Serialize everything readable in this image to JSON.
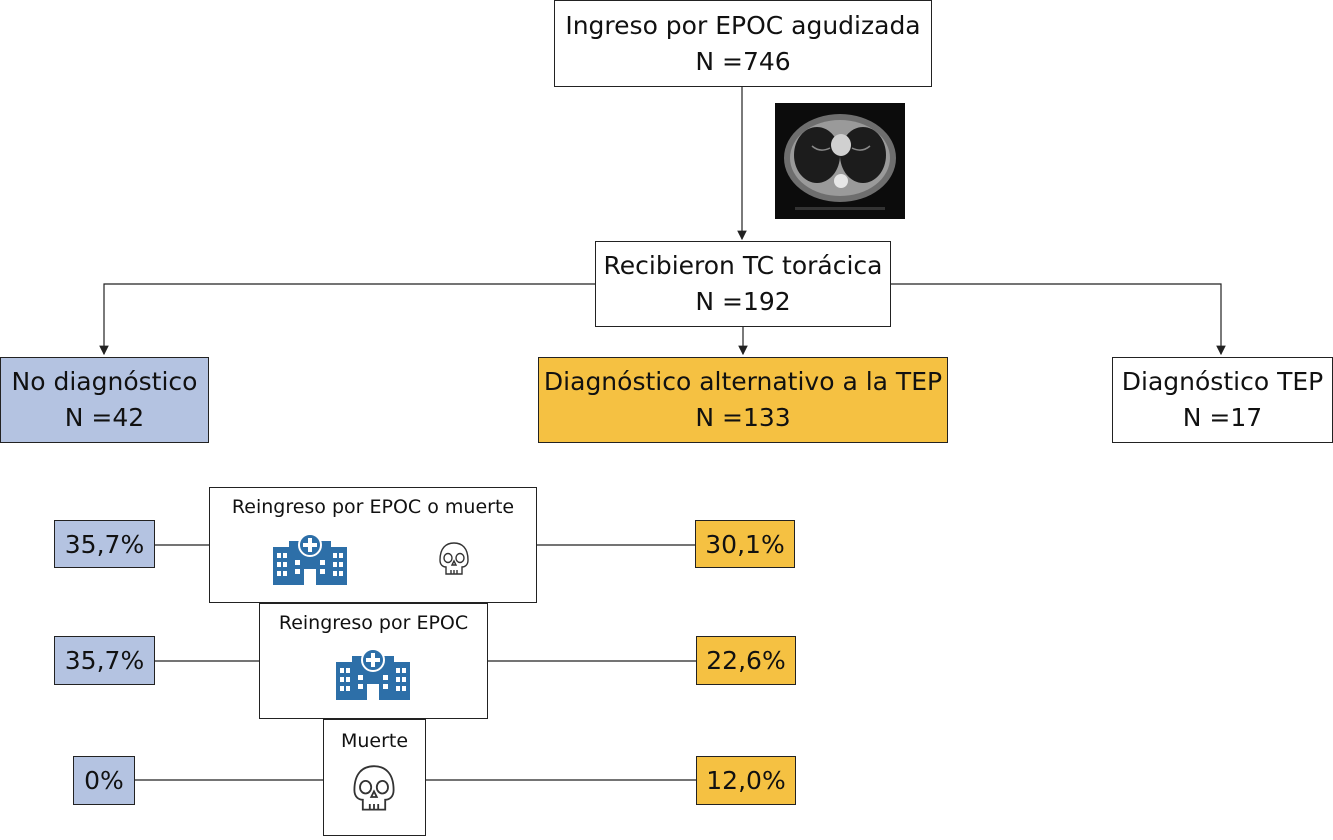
{
  "top": {
    "title": "Ingreso por EPOC agudizada",
    "n": "N =746"
  },
  "ct": {
    "title": "Recibieron TC torácica",
    "n": "N =192"
  },
  "groups": {
    "no_diag": {
      "title": "No diagnóstico",
      "n": "N =42",
      "color": "#b4c3e1"
    },
    "alt_diag": {
      "title": "Diagnóstico alternativo a la TEP",
      "n": "N =133",
      "color": "#f5c142"
    },
    "tep": {
      "title": "Diagnóstico TEP",
      "n": "N =17"
    }
  },
  "outcomes": [
    {
      "label": "Reingreso por EPOC o muerte",
      "left": "35,7%",
      "right": "30,1%",
      "icons": [
        "hospital-icon",
        "skull-icon"
      ]
    },
    {
      "label": "Reingreso por EPOC",
      "left": "35,7%",
      "right": "22,6%",
      "icons": [
        "hospital-icon"
      ]
    },
    {
      "label": "Muerte",
      "left": "0%",
      "right": "12,0%",
      "icons": [
        "skull-icon"
      ]
    }
  ]
}
